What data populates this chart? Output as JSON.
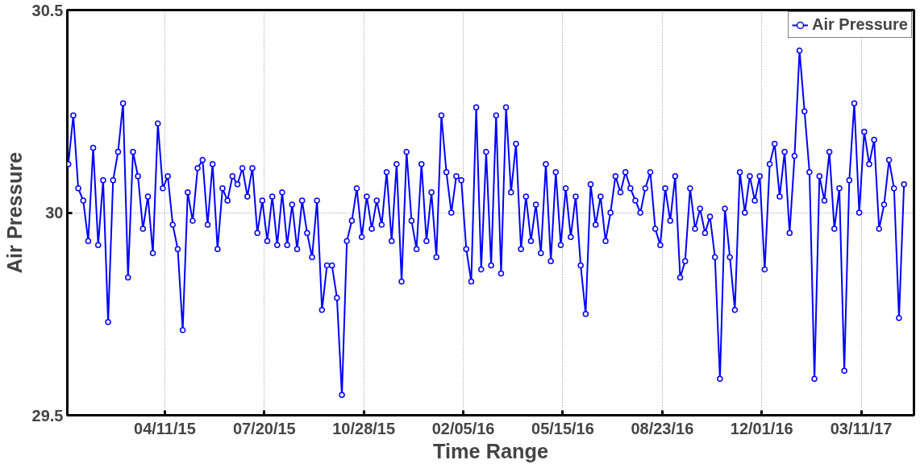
{
  "chart_data": {
    "type": "line",
    "xlabel": "Time Range",
    "ylabel": "Air Pressure",
    "x": [
      "2015-01-04",
      "2015-01-09",
      "2015-01-14",
      "2015-01-19",
      "2015-01-24",
      "2015-01-29",
      "2015-02-03",
      "2015-02-08",
      "2015-02-13",
      "2015-02-18",
      "2015-02-23",
      "2015-02-28",
      "2015-03-05",
      "2015-03-10",
      "2015-03-15",
      "2015-03-20",
      "2015-03-25",
      "2015-03-30",
      "2015-04-04",
      "2015-04-09",
      "2015-04-14",
      "2015-04-19",
      "2015-04-24",
      "2015-04-29",
      "2015-05-04",
      "2015-05-09",
      "2015-05-14",
      "2015-05-19",
      "2015-05-24",
      "2015-05-29",
      "2015-06-03",
      "2015-06-08",
      "2015-06-13",
      "2015-06-18",
      "2015-06-23",
      "2015-06-28",
      "2015-07-03",
      "2015-07-08",
      "2015-07-13",
      "2015-07-18",
      "2015-07-23",
      "2015-07-28",
      "2015-08-02",
      "2015-08-07",
      "2015-08-12",
      "2015-08-17",
      "2015-08-22",
      "2015-08-27",
      "2015-09-01",
      "2015-09-06",
      "2015-09-11",
      "2015-09-16",
      "2015-09-21",
      "2015-09-26",
      "2015-10-01",
      "2015-10-06",
      "2015-10-11",
      "2015-10-16",
      "2015-10-21",
      "2015-10-26",
      "2015-10-31",
      "2015-11-05",
      "2015-11-10",
      "2015-11-15",
      "2015-11-20",
      "2015-11-25",
      "2015-11-30",
      "2015-12-05",
      "2015-12-10",
      "2015-12-15",
      "2015-12-20",
      "2015-12-25",
      "2015-12-30",
      "2016-01-04",
      "2016-01-09",
      "2016-01-14",
      "2016-01-19",
      "2016-01-24",
      "2016-01-29",
      "2016-02-03",
      "2016-02-08",
      "2016-02-13",
      "2016-02-18",
      "2016-02-23",
      "2016-02-28",
      "2016-03-04",
      "2016-03-09",
      "2016-03-14",
      "2016-03-19",
      "2016-03-24",
      "2016-03-29",
      "2016-04-03",
      "2016-04-08",
      "2016-04-13",
      "2016-04-18",
      "2016-04-23",
      "2016-04-28",
      "2016-05-03",
      "2016-05-08",
      "2016-05-13",
      "2016-05-18",
      "2016-05-23",
      "2016-05-28",
      "2016-06-02",
      "2016-06-07",
      "2016-06-12",
      "2016-06-17",
      "2016-06-22",
      "2016-06-27",
      "2016-07-02",
      "2016-07-07",
      "2016-07-12",
      "2016-07-17",
      "2016-07-22",
      "2016-07-27",
      "2016-08-01",
      "2016-08-06",
      "2016-08-11",
      "2016-08-16",
      "2016-08-21",
      "2016-08-26",
      "2016-08-31",
      "2016-09-05",
      "2016-09-10",
      "2016-09-15",
      "2016-09-20",
      "2016-09-25",
      "2016-09-30",
      "2016-10-05",
      "2016-10-10",
      "2016-10-15",
      "2016-10-20",
      "2016-10-25",
      "2016-10-30",
      "2016-11-04",
      "2016-11-09",
      "2016-11-14",
      "2016-11-19",
      "2016-11-24",
      "2016-11-29",
      "2016-12-04",
      "2016-12-09",
      "2016-12-14",
      "2016-12-19",
      "2016-12-24",
      "2016-12-29",
      "2017-01-03",
      "2017-01-08",
      "2017-01-13",
      "2017-01-18",
      "2017-01-23",
      "2017-01-28",
      "2017-02-02",
      "2017-02-07",
      "2017-02-12",
      "2017-02-17",
      "2017-02-22",
      "2017-02-27",
      "2017-03-04",
      "2017-03-09",
      "2017-03-14",
      "2017-03-19",
      "2017-03-24",
      "2017-03-29",
      "2017-04-03",
      "2017-04-08",
      "2017-04-13",
      "2017-04-18",
      "2017-04-23"
    ],
    "series": [
      {
        "name": "Air Pressure",
        "color": "#0000ff",
        "values": [
          30.12,
          30.24,
          30.06,
          30.03,
          29.93,
          30.16,
          29.92,
          30.08,
          29.73,
          30.08,
          30.15,
          30.27,
          29.84,
          30.15,
          30.09,
          29.96,
          30.04,
          29.9,
          30.22,
          30.06,
          30.09,
          29.97,
          29.91,
          29.71,
          30.05,
          29.98,
          30.11,
          30.13,
          29.97,
          30.12,
          29.91,
          30.06,
          30.03,
          30.09,
          30.07,
          30.11,
          30.04,
          30.11,
          29.95,
          30.03,
          29.93,
          30.04,
          29.92,
          30.05,
          29.92,
          30.02,
          29.91,
          30.03,
          29.95,
          29.89,
          30.03,
          29.76,
          29.87,
          29.87,
          29.79,
          29.55,
          29.93,
          29.98,
          30.06,
          29.94,
          30.04,
          29.96,
          30.03,
          29.97,
          30.1,
          29.93,
          30.12,
          29.83,
          30.15,
          29.98,
          29.91,
          30.12,
          29.93,
          30.05,
          29.89,
          30.24,
          30.1,
          30.0,
          30.09,
          30.08,
          29.91,
          29.83,
          30.26,
          29.86,
          30.15,
          29.87,
          30.24,
          29.85,
          30.26,
          30.05,
          30.17,
          29.91,
          30.04,
          29.93,
          30.02,
          29.9,
          30.12,
          29.88,
          30.1,
          29.92,
          30.06,
          29.94,
          30.04,
          29.87,
          29.75,
          30.07,
          29.97,
          30.04,
          29.93,
          30.0,
          30.09,
          30.05,
          30.1,
          30.06,
          30.03,
          30.0,
          30.06,
          30.1,
          29.96,
          29.92,
          30.06,
          29.98,
          30.09,
          29.84,
          29.88,
          30.06,
          29.96,
          30.01,
          29.95,
          29.99,
          29.89,
          29.59,
          30.01,
          29.89,
          29.76,
          30.1,
          30.0,
          30.09,
          30.03,
          30.09,
          29.86,
          30.12,
          30.17,
          30.04,
          30.15,
          29.95,
          30.14,
          30.4,
          30.25,
          30.1,
          29.59,
          30.09,
          30.03,
          30.15,
          29.96,
          30.06,
          29.61,
          30.08,
          30.27,
          30.0,
          30.2,
          30.12,
          30.18,
          29.96,
          30.02,
          30.13,
          30.06,
          29.74,
          30.07
        ]
      }
    ],
    "xlim": [
      "2015-01-03",
      "2017-05-03"
    ],
    "xticks": [
      {
        "value": "2015-04-11",
        "label": "04/11/15"
      },
      {
        "value": "2015-07-20",
        "label": "07/20/15"
      },
      {
        "value": "2015-10-28",
        "label": "10/28/15"
      },
      {
        "value": "2016-02-05",
        "label": "02/05/16"
      },
      {
        "value": "2016-05-15",
        "label": "05/15/16"
      },
      {
        "value": "2016-08-23",
        "label": "08/23/16"
      },
      {
        "value": "2016-12-01",
        "label": "12/01/16"
      },
      {
        "value": "2017-03-11",
        "label": "03/11/17"
      }
    ],
    "ylim": [
      29.5,
      30.5
    ],
    "yticks": [
      29.5,
      30,
      30.5
    ],
    "grid": true,
    "legend": "top right",
    "marker": "circle",
    "line_style": "solid"
  }
}
